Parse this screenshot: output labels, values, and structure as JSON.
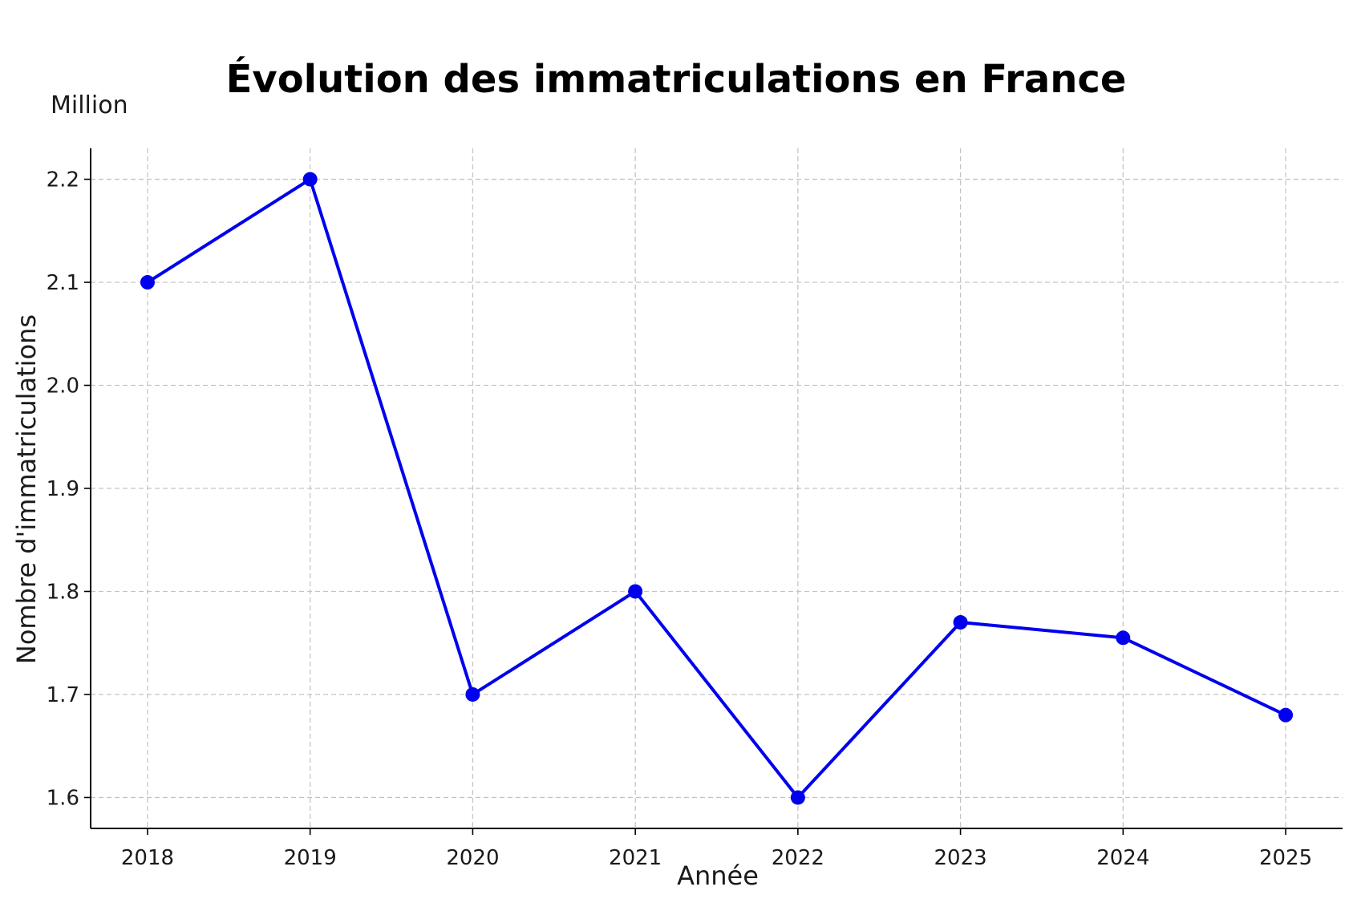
{
  "chart_data": {
    "type": "line",
    "title": "Évolution des immatriculations en France",
    "unit_label": "Million",
    "xlabel": "Année",
    "ylabel": "Nombre d'immatriculations",
    "x": [
      2018,
      2019,
      2020,
      2021,
      2022,
      2023,
      2024,
      2025
    ],
    "x_tick_labels": [
      "2018",
      "2019",
      "2020",
      "2021",
      "2022",
      "2023",
      "2024",
      "2025"
    ],
    "series": [
      {
        "values": [
          2.1,
          2.2,
          1.7,
          1.8,
          1.6,
          1.77,
          1.755,
          1.68
        ],
        "color": "#0000ee"
      }
    ],
    "y_ticks": [
      1.6,
      1.7,
      1.8,
      1.9,
      2.0,
      2.1,
      2.2
    ],
    "y_tick_labels": [
      "1.6",
      "1.7",
      "1.8",
      "1.9",
      "2.0",
      "2.1",
      "2.2"
    ],
    "ylim": [
      1.57,
      2.23
    ],
    "xlim": [
      2017.65,
      2025.35
    ],
    "grid": true,
    "marker": "circle"
  }
}
